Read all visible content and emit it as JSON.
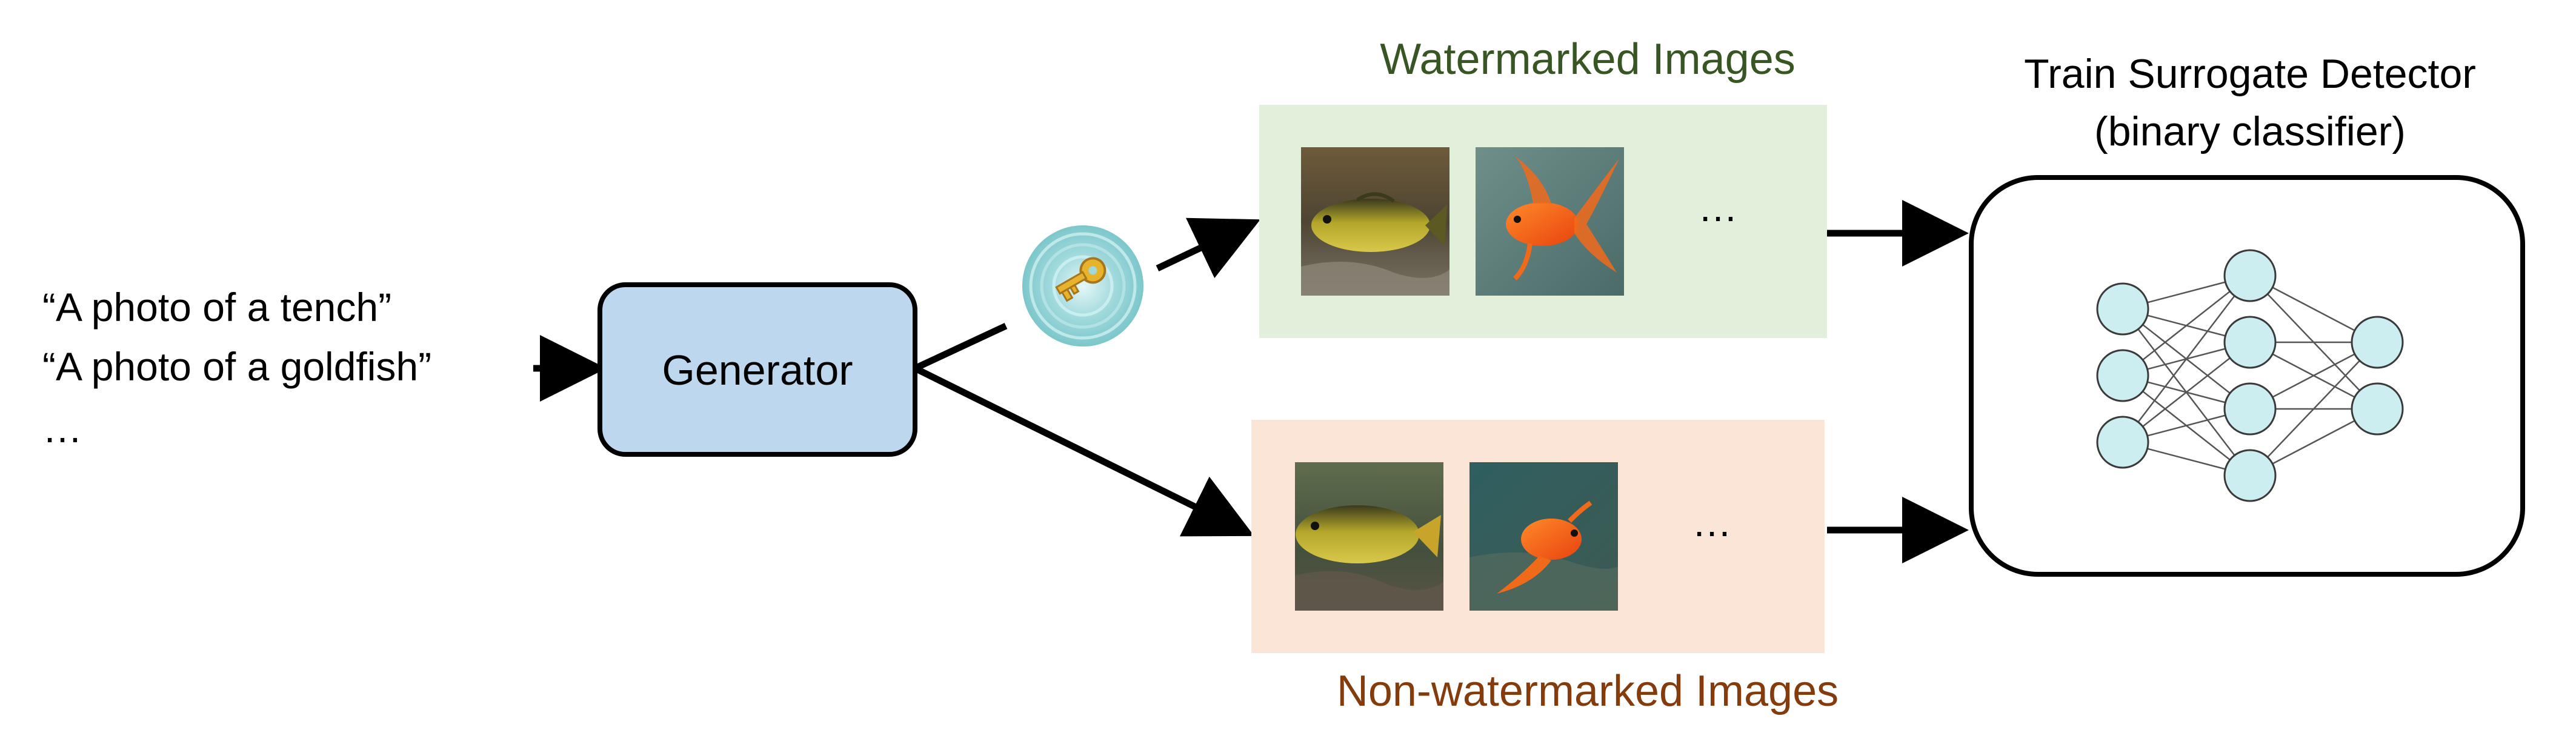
{
  "prompts": {
    "line1": "“A photo of a tench”",
    "line2": "“A photo of a goldfish”",
    "more": "…"
  },
  "generator": {
    "label": "Generator"
  },
  "watermark_key": {
    "icon": "key-in-watermark-ripple-icon"
  },
  "watermarked": {
    "title": "Watermarked Images",
    "title_color": "#375623",
    "panel_color": "#e2efda",
    "images": [
      "tench-photo",
      "goldfish-photo"
    ],
    "more": "…"
  },
  "non_watermarked": {
    "title": "Non-watermarked Images",
    "title_color": "#843c0c",
    "panel_color": "#fbe5d6",
    "images": [
      "tench-photo",
      "goldfish-photo"
    ],
    "more": "…"
  },
  "detector": {
    "title_line1": "Train Surrogate Detector",
    "title_line2": "(binary classifier)",
    "neuron_color": "#cdeef0",
    "network": {
      "input_nodes": 3,
      "hidden_nodes": 4,
      "output_nodes": 2
    }
  },
  "colors": {
    "generator_fill": "#bdd7ee",
    "arrow": "#000000"
  }
}
